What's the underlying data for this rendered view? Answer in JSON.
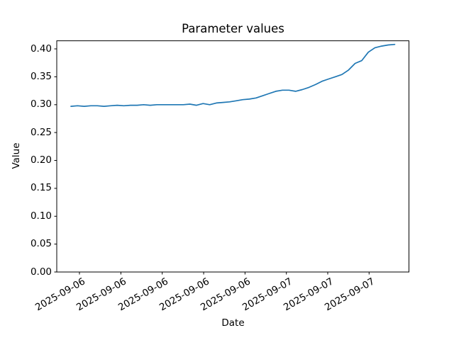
{
  "chart_data": {
    "type": "line",
    "title": "Parameter values",
    "xlabel": "Date",
    "ylabel": "Value",
    "grid": false,
    "legend": null,
    "line_color": "#1f77b4",
    "series": [
      {
        "name": "parameter-values",
        "values": [
          0.297,
          0.298,
          0.297,
          0.298,
          0.298,
          0.297,
          0.298,
          0.299,
          0.298,
          0.299,
          0.299,
          0.3,
          0.299,
          0.3,
          0.3,
          0.3,
          0.3,
          0.3,
          0.301,
          0.299,
          0.302,
          0.3,
          0.303,
          0.304,
          0.305,
          0.307,
          0.309,
          0.31,
          0.312,
          0.316,
          0.32,
          0.324,
          0.326,
          0.326,
          0.324,
          0.327,
          0.331,
          0.336,
          0.342,
          0.346,
          0.35,
          0.354,
          0.362,
          0.374,
          0.379,
          0.394,
          0.402,
          0.405,
          0.407,
          0.408
        ]
      }
    ],
    "x_tick_labels": [
      "2025-09-06",
      "2025-09-06",
      "2025-09-06",
      "2025-09-06",
      "2025-09-06",
      "2025-09-07",
      "2025-09-07",
      "2025-09-07"
    ],
    "x_tick_positions": [
      1.29,
      7.55,
      13.81,
      20.08,
      26.34,
      32.6,
      38.86,
      45.12
    ],
    "xlim": [
      -2.149,
      51.149
    ],
    "y_tick_labels": [
      "0.00",
      "0.05",
      "0.10",
      "0.15",
      "0.20",
      "0.25",
      "0.30",
      "0.35",
      "0.40"
    ],
    "y_ticks": [
      0.0,
      0.05,
      0.1,
      0.15,
      0.2,
      0.25,
      0.3,
      0.35,
      0.4
    ],
    "ylim": [
      0.0,
      0.4145
    ]
  }
}
